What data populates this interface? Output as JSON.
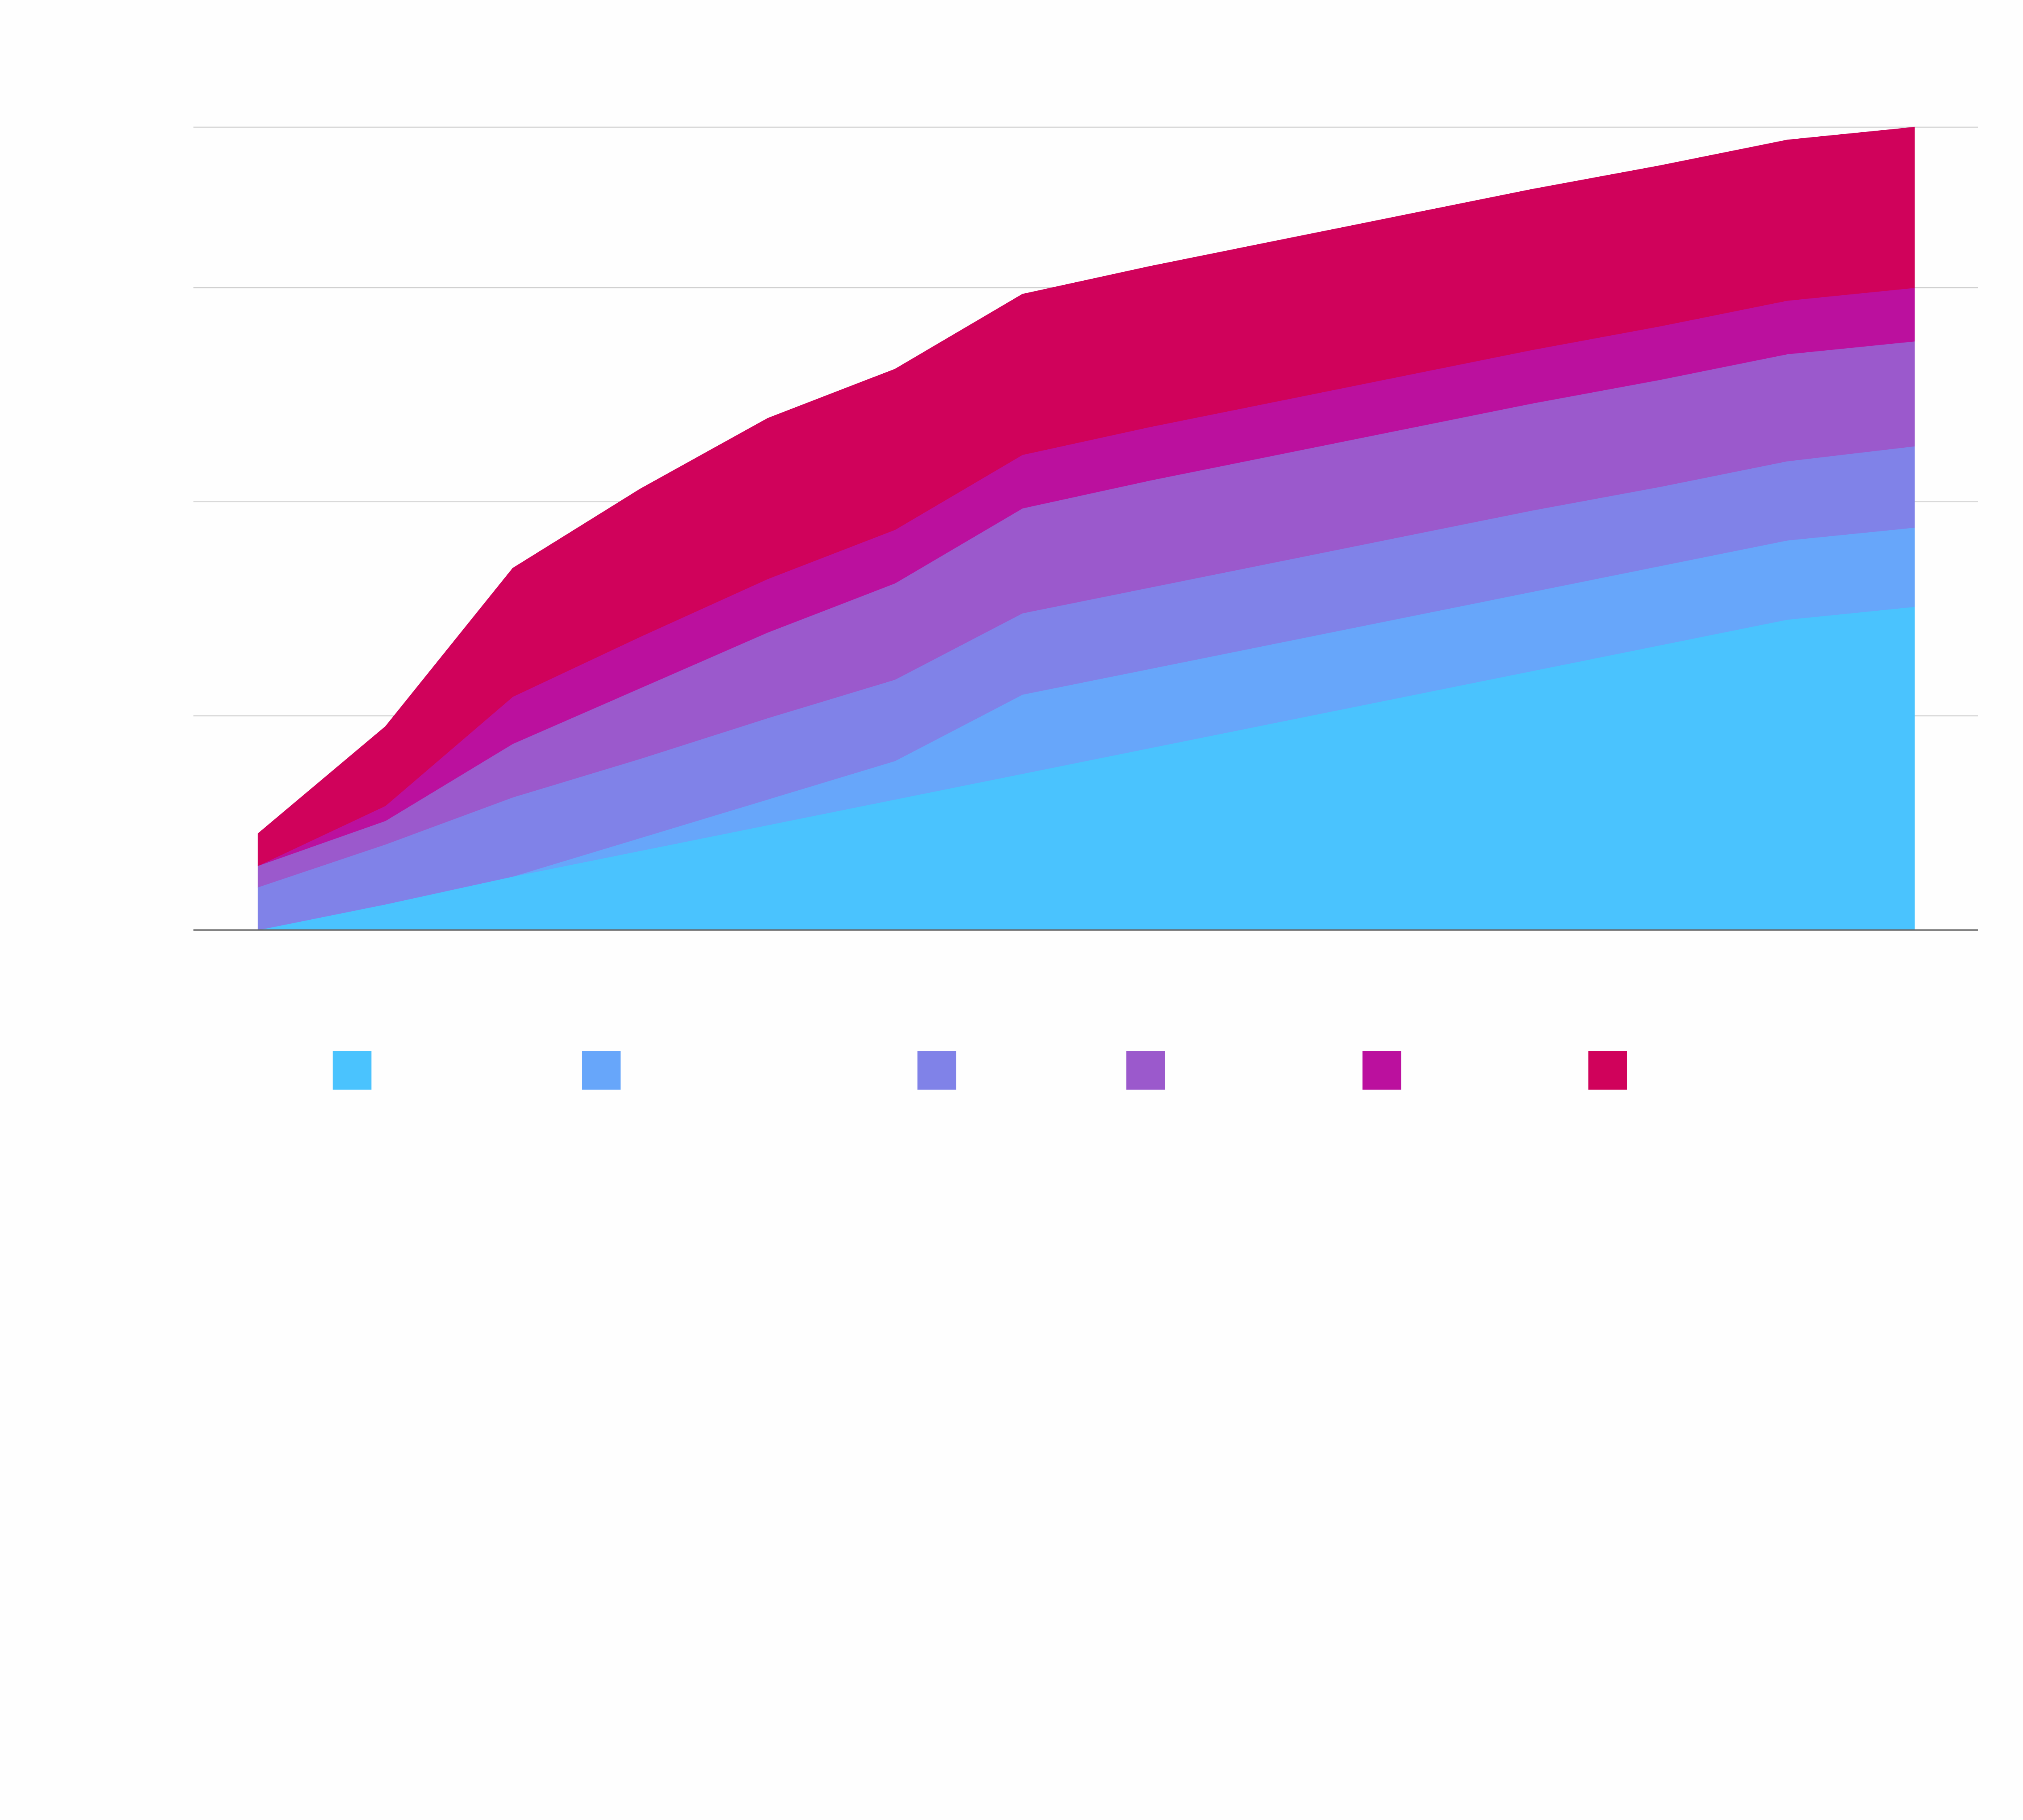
{
  "chart_data": {
    "type": "area",
    "stacked": true,
    "title": "",
    "xlabel": "",
    "ylabel": "",
    "x": [
      0,
      1,
      2,
      3,
      4,
      5,
      6,
      7,
      8,
      9,
      10,
      11,
      12,
      13
    ],
    "ylim": [
      0,
      3.75
    ],
    "yticks": [
      0,
      1,
      2,
      3,
      3.75
    ],
    "grid": true,
    "legend_placement": "bottom",
    "series": [
      {
        "color": "#4ac3fe",
        "values": [
          0,
          0.12,
          0.25,
          0.37,
          0.49,
          0.61,
          0.73,
          0.85,
          0.97,
          1.09,
          1.21,
          1.33,
          1.45,
          1.51
        ]
      },
      {
        "color": "#67a6fa",
        "values": [
          0,
          0,
          0,
          0.06,
          0.12,
          0.18,
          0.37,
          0.37,
          0.37,
          0.37,
          0.37,
          0.37,
          0.37,
          0.37
        ]
      },
      {
        "color": "#8082e8",
        "values": [
          0.2,
          0.28,
          0.37,
          0.37,
          0.38,
          0.38,
          0.38,
          0.38,
          0.38,
          0.38,
          0.38,
          0.37,
          0.37,
          0.38
        ]
      },
      {
        "color": "#9b59cc",
        "values": [
          0.1,
          0.11,
          0.25,
          0.33,
          0.4,
          0.45,
          0.49,
          0.5,
          0.5,
          0.5,
          0.5,
          0.5,
          0.5,
          0.49
        ]
      },
      {
        "color": "#bb109e",
        "values": [
          0,
          0.07,
          0.22,
          0.24,
          0.25,
          0.25,
          0.25,
          0.25,
          0.25,
          0.25,
          0.25,
          0.25,
          0.25,
          0.25
        ]
      },
      {
        "color": "#d0025b",
        "values": [
          0.15,
          0.37,
          0.6,
          0.69,
          0.75,
          0.75,
          0.75,
          0.75,
          0.75,
          0.75,
          0.75,
          0.75,
          0.75,
          0.75
        ]
      }
    ]
  }
}
